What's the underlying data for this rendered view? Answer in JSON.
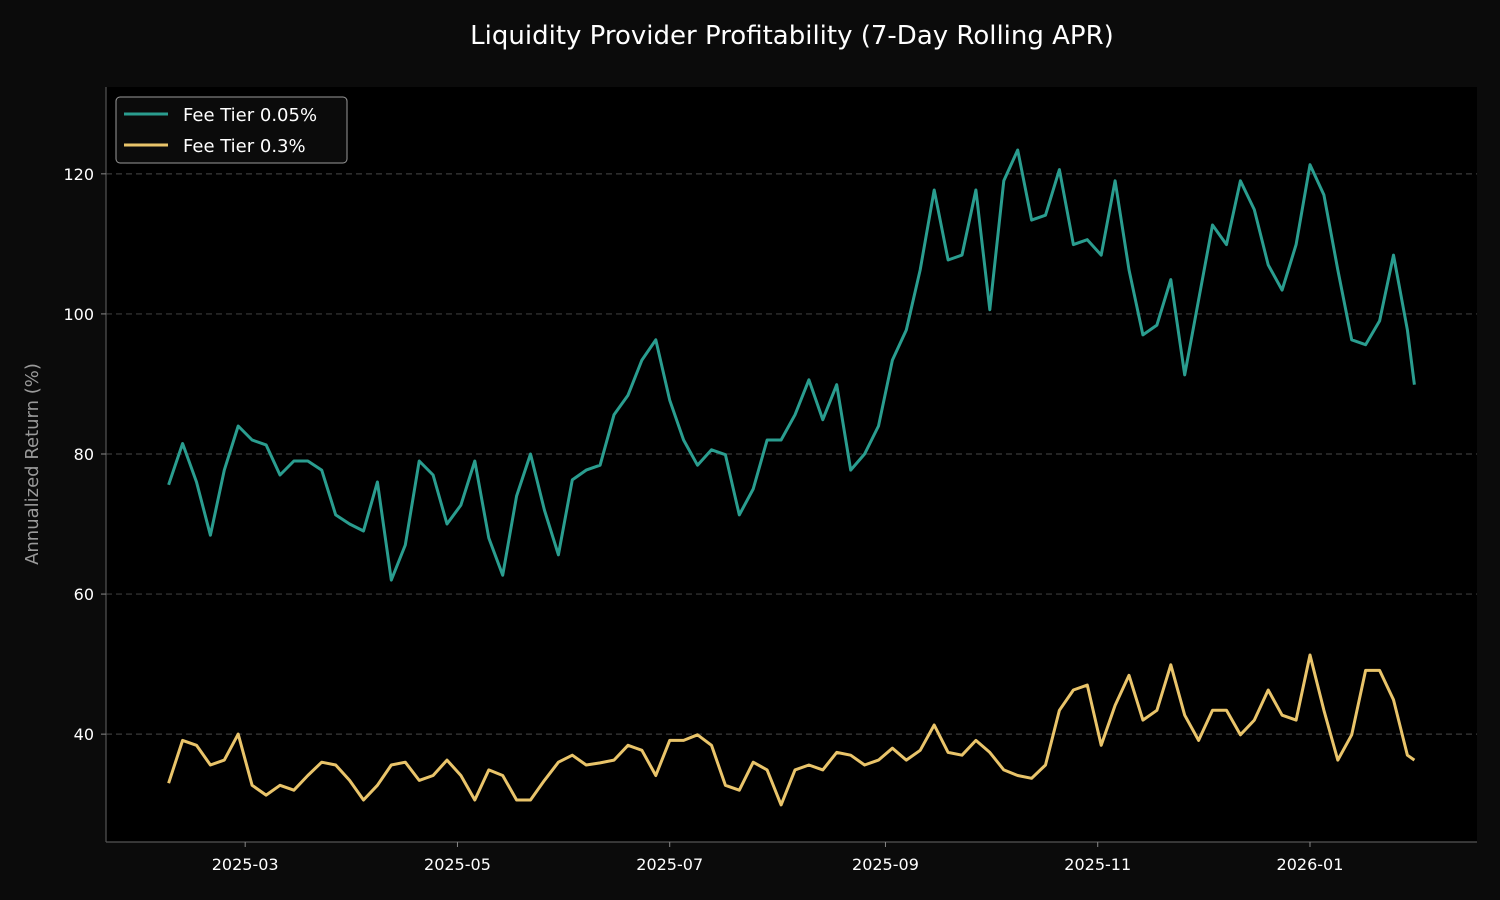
{
  "chart_data": {
    "type": "line",
    "title": "Liquidity Provider Profitability (7-Day Rolling APR)",
    "xlabel": "",
    "ylabel": "Annualized Return (%)",
    "xlim": [
      "2025-01-20",
      "2026-02-18"
    ],
    "ylim": [
      24.6,
      132.4
    ],
    "x_ticks": [
      "2025-03",
      "2025-05",
      "2025-07",
      "2025-09",
      "2025-11",
      "2026-01"
    ],
    "y_ticks": [
      40,
      60,
      80,
      100,
      120
    ],
    "grid": "horizontal dashed",
    "legend_placement": "top-left",
    "background": "#000000",
    "x": [
      "2025-02-07",
      "2025-02-11",
      "2025-02-15",
      "2025-02-19",
      "2025-02-23",
      "2025-02-27",
      "2025-03-03",
      "2025-03-07",
      "2025-03-11",
      "2025-03-15",
      "2025-03-19",
      "2025-03-23",
      "2025-03-27",
      "2025-03-31",
      "2025-04-04",
      "2025-04-08",
      "2025-04-12",
      "2025-04-16",
      "2025-04-20",
      "2025-04-24",
      "2025-04-28",
      "2025-05-02",
      "2025-05-06",
      "2025-05-10",
      "2025-05-14",
      "2025-05-18",
      "2025-05-22",
      "2025-05-26",
      "2025-05-30",
      "2025-06-03",
      "2025-06-07",
      "2025-06-11",
      "2025-06-15",
      "2025-06-19",
      "2025-06-23",
      "2025-06-27",
      "2025-07-01",
      "2025-07-05",
      "2025-07-09",
      "2025-07-13",
      "2025-07-17",
      "2025-07-21",
      "2025-07-25",
      "2025-07-29",
      "2025-08-02",
      "2025-08-06",
      "2025-08-10",
      "2025-08-14",
      "2025-08-18",
      "2025-08-22",
      "2025-08-26",
      "2025-08-30",
      "2025-09-03",
      "2025-09-07",
      "2025-09-11",
      "2025-09-15",
      "2025-09-19",
      "2025-09-23",
      "2025-09-27",
      "2025-10-01",
      "2025-10-05",
      "2025-10-09",
      "2025-10-13",
      "2025-10-17",
      "2025-10-21",
      "2025-10-25",
      "2025-10-29",
      "2025-11-02",
      "2025-11-06",
      "2025-11-10",
      "2025-11-14",
      "2025-11-18",
      "2025-11-22",
      "2025-11-26",
      "2025-11-30",
      "2025-12-04",
      "2025-12-08",
      "2025-12-12",
      "2025-12-16",
      "2025-12-20",
      "2025-12-24",
      "2025-12-28",
      "2026-01-01",
      "2026-01-05",
      "2026-01-09",
      "2026-01-13",
      "2026-01-17",
      "2026-01-21",
      "2026-01-25",
      "2026-01-29",
      "2026-01-31"
    ],
    "series": [
      {
        "name": "Fee Tier 0.05%",
        "color": "#2a9d8f",
        "values": [
          75.6,
          81.5,
          76,
          68.4,
          77.7,
          84,
          82,
          81.3,
          77,
          79,
          79,
          77.7,
          71.3,
          70,
          69,
          76,
          62,
          67,
          79,
          77,
          70,
          72.7,
          79,
          68,
          62.7,
          74,
          80,
          72,
          65.6,
          76.3,
          77.7,
          78.4,
          85.6,
          88.4,
          93.4,
          96.3,
          87.7,
          82,
          78.4,
          80.6,
          79.9,
          71.3,
          75,
          82,
          82,
          85.6,
          90.6,
          84.9,
          89.9,
          77.7,
          80,
          84,
          93.4,
          97.7,
          106.3,
          117.7,
          107.7,
          108.4,
          117.7,
          100.6,
          119,
          123.4,
          113.4,
          114.1,
          120.6,
          109.9,
          110.6,
          108.4,
          119,
          106.3,
          97,
          98.4,
          104.9,
          91.3,
          102,
          112.7,
          109.9,
          119,
          114.9,
          107,
          103.4,
          109.9,
          121.3,
          117,
          106.3,
          96.3,
          95.6,
          99,
          108.4,
          97.7,
          89.9
        ]
      },
      {
        "name": "Fee Tier 0.3%",
        "color": "#e9c46a",
        "values": [
          33,
          39.1,
          38.4,
          35.6,
          36.3,
          40,
          32.7,
          31.3,
          32.7,
          32,
          34.1,
          36,
          35.6,
          33.4,
          30.6,
          32.7,
          35.6,
          36,
          33.4,
          34.1,
          36.3,
          34.1,
          30.6,
          34.9,
          34.1,
          30.6,
          30.6,
          33.4,
          36,
          37,
          35.6,
          35.9,
          36.3,
          38.4,
          37.7,
          34.1,
          39.1,
          39.1,
          39.9,
          38.4,
          32.7,
          32,
          36,
          34.9,
          29.9,
          34.9,
          35.6,
          34.9,
          37.4,
          37,
          35.6,
          36.3,
          38,
          36.3,
          37.7,
          41.3,
          37.4,
          37,
          39.1,
          37.4,
          34.9,
          34.1,
          33.7,
          35.6,
          43.4,
          46.3,
          47,
          38.4,
          44.1,
          48.4,
          42,
          43.4,
          49.9,
          42.7,
          39.1,
          43.4,
          43.4,
          39.9,
          42,
          46.3,
          42.7,
          42,
          51.3,
          43.4,
          36.3,
          39.9,
          49.1,
          49.1,
          44.9,
          37,
          36.3
        ]
      }
    ]
  }
}
